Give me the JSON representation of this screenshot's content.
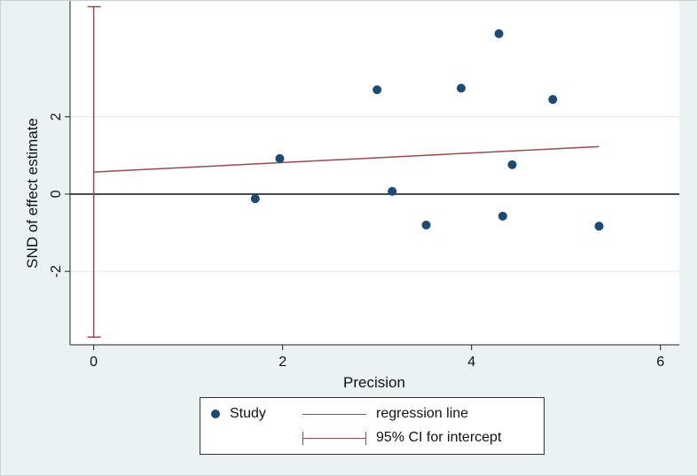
{
  "chart_data": {
    "type": "scatter",
    "xlabel": "Precision",
    "ylabel": "SND of effect estimate",
    "xlim": [
      -0.25,
      6.2
    ],
    "ylim": [
      -3.9,
      5.0
    ],
    "xticks": [
      0,
      2,
      4,
      6
    ],
    "yticks": [
      -2,
      0,
      2
    ],
    "grid": "horizontal",
    "series": [
      {
        "name": "Study",
        "color": "#1a4a76",
        "points": [
          {
            "x": 1.71,
            "y": -0.12
          },
          {
            "x": 1.97,
            "y": 0.92
          },
          {
            "x": 3.0,
            "y": 2.7
          },
          {
            "x": 3.16,
            "y": 0.07
          },
          {
            "x": 3.52,
            "y": -0.8
          },
          {
            "x": 3.89,
            "y": 2.74
          },
          {
            "x": 4.29,
            "y": 4.15
          },
          {
            "x": 4.33,
            "y": -0.57
          },
          {
            "x": 4.43,
            "y": 0.76
          },
          {
            "x": 4.86,
            "y": 2.45
          },
          {
            "x": 5.35,
            "y": -0.83
          }
        ]
      }
    ],
    "regression_line": {
      "name": "regression line",
      "color": "#9a4a4c",
      "x": [
        0,
        5.35
      ],
      "y": [
        0.57,
        1.23
      ]
    },
    "ci_intercept": {
      "name": "95% CI for intercept",
      "color": "#9a4a4c",
      "x": 0,
      "low": -3.7,
      "high": 4.85
    },
    "zero_line": {
      "y": 0,
      "color": "#111111"
    },
    "legend_position": "bottom-center"
  },
  "legend": {
    "study_label": "Study",
    "regression_label": "regression line",
    "ci_label": "95% CI for intercept"
  }
}
